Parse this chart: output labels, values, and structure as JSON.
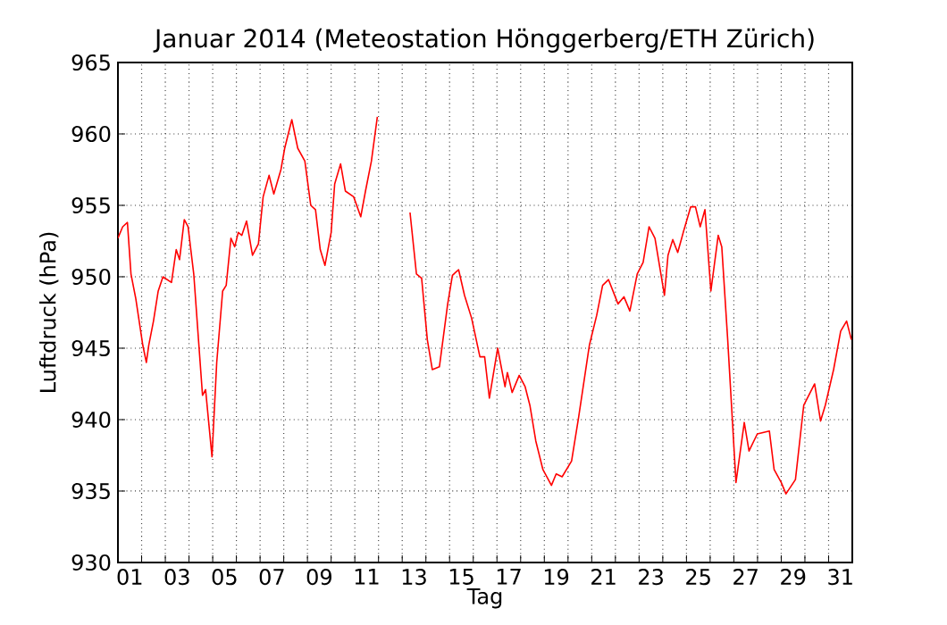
{
  "chart_data": {
    "type": "line",
    "title": "Januar 2014  (Meteostation Hönggerberg/ETH Zürich)",
    "xlabel": "Tag",
    "ylabel": "Luftdruck (hPa)",
    "x": [
      1.0,
      1.2,
      1.4,
      1.55,
      1.75,
      2.05,
      2.2,
      2.3,
      2.5,
      2.7,
      2.9,
      3.26,
      3.46,
      3.6,
      3.8,
      3.96,
      4.2,
      4.4,
      4.57,
      4.7,
      4.97,
      5.17,
      5.42,
      5.57,
      5.77,
      5.93,
      6.08,
      6.23,
      6.43,
      6.68,
      6.93,
      7.13,
      7.38,
      7.58,
      7.88,
      8.04,
      8.34,
      8.59,
      8.89,
      9.14,
      9.34,
      9.54,
      9.74,
      10.0,
      10.15,
      10.4,
      10.6,
      10.95,
      11.25,
      11.45,
      11.7,
      11.95,
      12.6,
      13.33,
      13.6,
      13.82,
      14.06,
      14.27,
      14.57,
      14.92,
      15.12,
      15.38,
      15.63,
      15.93,
      16.28,
      16.48,
      16.68,
      17.03,
      17.34,
      17.44,
      17.64,
      17.94,
      18.19,
      18.39,
      18.64,
      18.94,
      19.3,
      19.5,
      19.75,
      20.15,
      20.45,
      20.9,
      21.21,
      21.46,
      21.71,
      22.11,
      22.36,
      22.61,
      22.92,
      23.17,
      23.42,
      23.67,
      24.07,
      24.22,
      24.42,
      24.63,
      24.88,
      25.18,
      25.38,
      25.58,
      25.78,
      26.03,
      26.34,
      26.49,
      26.74,
      27.09,
      27.44,
      27.64,
      27.99,
      28.5,
      28.7,
      29.0,
      29.2,
      29.6,
      29.95,
      30.41,
      30.66,
      30.86,
      31.21,
      31.51,
      31.76,
      31.96
    ],
    "series": [
      {
        "color": "#ff0000",
        "values": [
          952.7,
          953.5,
          953.8,
          950.2,
          948.5,
          945.2,
          944.0,
          945.2,
          946.9,
          949.0,
          950.0,
          949.6,
          951.9,
          951.2,
          954.0,
          953.5,
          950.2,
          945.6,
          941.7,
          942.1,
          937.4,
          944.0,
          949.0,
          949.4,
          952.7,
          952.1,
          953.1,
          952.9,
          953.9,
          951.5,
          952.3,
          955.6,
          957.1,
          955.8,
          957.5,
          959.0,
          961.0,
          959.0,
          958.1,
          955.0,
          954.7,
          951.9,
          950.8,
          953.1,
          956.5,
          957.9,
          956.0,
          955.6,
          954.2,
          956.0,
          958.1,
          961.2,
          null,
          954.5,
          950.2,
          949.9,
          945.6,
          943.5,
          943.7,
          948.1,
          950.1,
          950.5,
          948.7,
          947.1,
          944.4,
          944.4,
          941.5,
          945.0,
          942.3,
          943.3,
          941.9,
          943.1,
          942.3,
          941.0,
          938.5,
          936.5,
          935.4,
          936.2,
          936.0,
          937.1,
          940.2,
          945.2,
          947.3,
          949.4,
          949.8,
          948.1,
          948.6,
          947.6,
          950.2,
          951.0,
          953.5,
          952.7,
          948.7,
          951.5,
          952.6,
          951.7,
          953.2,
          954.9,
          954.9,
          953.5,
          954.7,
          949.0,
          952.9,
          952.1,
          945.6,
          935.6,
          939.8,
          937.8,
          939.0,
          939.2,
          936.5,
          935.6,
          934.8,
          935.8,
          941.0,
          942.5,
          939.9,
          941.0,
          943.5,
          946.2,
          946.9,
          945.6
        ]
      }
    ],
    "xlim": [
      1,
      32
    ],
    "ylim": [
      930,
      965
    ],
    "yticks": [
      930,
      935,
      940,
      945,
      950,
      955,
      960,
      965
    ],
    "xticks": [
      {
        "value": 1.5,
        "label": "01"
      },
      {
        "value": 2,
        "label": null
      },
      {
        "value": 3,
        "label": null
      },
      {
        "value": 3.5,
        "label": "03"
      },
      {
        "value": 4,
        "label": null
      },
      {
        "value": 5,
        "label": null
      },
      {
        "value": 5.5,
        "label": "05"
      },
      {
        "value": 6,
        "label": null
      },
      {
        "value": 7,
        "label": null
      },
      {
        "value": 7.5,
        "label": "07"
      },
      {
        "value": 8,
        "label": null
      },
      {
        "value": 9,
        "label": null
      },
      {
        "value": 9.5,
        "label": "09"
      },
      {
        "value": 10,
        "label": null
      },
      {
        "value": 11,
        "label": null
      },
      {
        "value": 11.5,
        "label": "11"
      },
      {
        "value": 12,
        "label": null
      },
      {
        "value": 13,
        "label": null
      },
      {
        "value": 13.5,
        "label": "13"
      },
      {
        "value": 14,
        "label": null
      },
      {
        "value": 15,
        "label": null
      },
      {
        "value": 15.5,
        "label": "15"
      },
      {
        "value": 16,
        "label": null
      },
      {
        "value": 17,
        "label": null
      },
      {
        "value": 17.5,
        "label": "17"
      },
      {
        "value": 18,
        "label": null
      },
      {
        "value": 19,
        "label": null
      },
      {
        "value": 19.5,
        "label": "19"
      },
      {
        "value": 20,
        "label": null
      },
      {
        "value": 21,
        "label": null
      },
      {
        "value": 21.5,
        "label": "21"
      },
      {
        "value": 22,
        "label": null
      },
      {
        "value": 23,
        "label": null
      },
      {
        "value": 23.5,
        "label": "23"
      },
      {
        "value": 24,
        "label": null
      },
      {
        "value": 25,
        "label": null
      },
      {
        "value": 25.5,
        "label": "25"
      },
      {
        "value": 26,
        "label": null
      },
      {
        "value": 27,
        "label": null
      },
      {
        "value": 27.5,
        "label": "27"
      },
      {
        "value": 28,
        "label": null
      },
      {
        "value": 29,
        "label": null
      },
      {
        "value": 29.5,
        "label": "29"
      },
      {
        "value": 30,
        "label": null
      },
      {
        "value": 31,
        "label": null
      },
      {
        "value": 31.5,
        "label": "31"
      }
    ],
    "grid": true,
    "marker": "none",
    "line_style": "solid"
  }
}
